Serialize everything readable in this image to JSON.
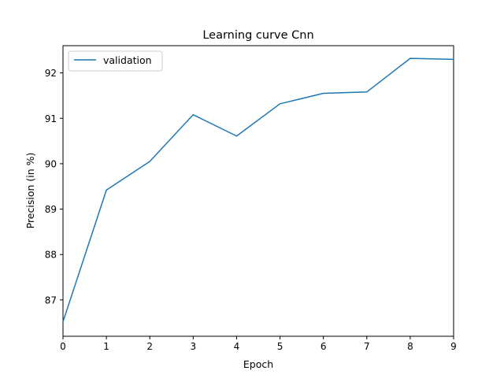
{
  "chart_data": {
    "type": "line",
    "title": "Learning curve Cnn",
    "xlabel": "Epoch",
    "ylabel": "Precision (in %)",
    "xlim": [
      0,
      9
    ],
    "ylim": [
      86.2,
      92.6
    ],
    "xticks": [
      0,
      1,
      2,
      3,
      4,
      5,
      6,
      7,
      8,
      9
    ],
    "yticks": [
      87,
      88,
      89,
      90,
      91,
      92
    ],
    "grid": false,
    "legend_position": "top-left",
    "series": [
      {
        "name": "validation",
        "color": "#1f77b4",
        "x": [
          0,
          1,
          2,
          3,
          4,
          5,
          6,
          7,
          8,
          9
        ],
        "y": [
          86.52,
          89.42,
          90.05,
          91.08,
          90.61,
          91.32,
          91.55,
          91.58,
          92.32,
          92.3
        ]
      }
    ]
  }
}
